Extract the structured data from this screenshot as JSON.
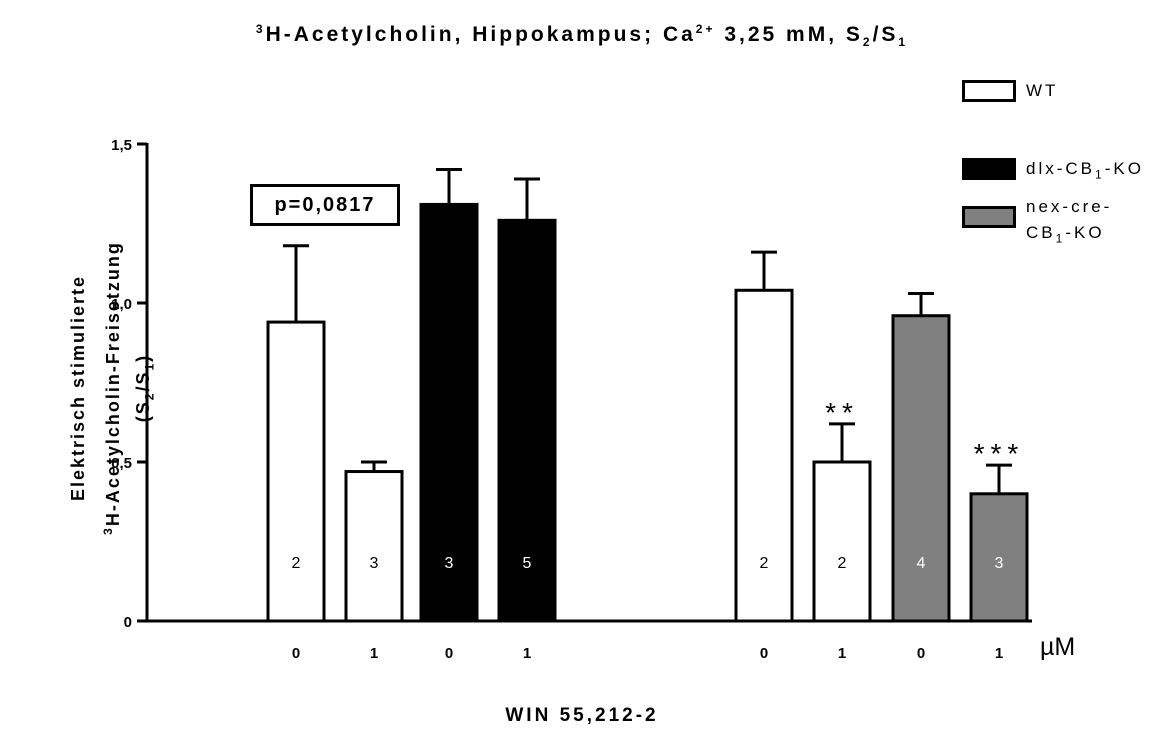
{
  "chart_data": {
    "type": "bar",
    "title_parts": {
      "pre_sup": "3",
      "main": "H-Acetylcholin, Hippokampus; Ca",
      "sup": "2+",
      "mid": " 3,25 mM, S",
      "sub1": "2",
      "slash": "/S",
      "sub2": "1"
    },
    "ylabel_parts": {
      "line1": "Elektrisch stimulierte",
      "line2_sup": "3",
      "line2": "H-Acetylcholin-Freisetzung",
      "line3_pre": "(S",
      "line3_sub1": "2",
      "line3_mid": "/S",
      "line3_sub2": "1",
      "line3_post": ")"
    },
    "xlabel": "WIN 55,212-2",
    "x_unit": "µM",
    "ylim": [
      0,
      1.5
    ],
    "yticks": [
      {
        "value": 0,
        "label": "0"
      },
      {
        "value": 0.5,
        "label": "0,5"
      },
      {
        "value": 1.0,
        "label": "1,0"
      },
      {
        "value": 1.5,
        "label": "1,5"
      }
    ],
    "grid": false,
    "legend_placement": "top-right",
    "series": [
      {
        "name": "WT",
        "color": "#ffffff"
      },
      {
        "name": "dlx-CB₁-KO",
        "color": "#000000"
      },
      {
        "name": "nex-cre-CB₁-KO",
        "color": "#808080"
      }
    ],
    "legend_labels": [
      {
        "main": "WT",
        "sub": "",
        "post": "",
        "line2": "",
        "line2_sub": "",
        "line2_post": ""
      },
      {
        "main": "dlx-CB",
        "sub": "1",
        "post": "-KO",
        "line2": "",
        "line2_sub": "",
        "line2_post": ""
      },
      {
        "main": "nex-cre-",
        "sub": "",
        "post": "",
        "line2": "CB",
        "line2_sub": "1",
        "line2_post": "-KO"
      }
    ],
    "bars": [
      {
        "group": 1,
        "series": "WT",
        "dose": "0",
        "value": 0.94,
        "error": 0.24,
        "n": "2",
        "stars": ""
      },
      {
        "group": 1,
        "series": "WT",
        "dose": "1",
        "value": 0.47,
        "error": 0.03,
        "n": "3",
        "stars": ""
      },
      {
        "group": 1,
        "series": "dlx-CB₁-KO",
        "dose": "0",
        "value": 1.31,
        "error": 0.11,
        "n": "3",
        "stars": ""
      },
      {
        "group": 1,
        "series": "dlx-CB₁-KO",
        "dose": "1",
        "value": 1.26,
        "error": 0.13,
        "n": "5",
        "stars": ""
      },
      {
        "group": 2,
        "series": "WT",
        "dose": "0",
        "value": 1.04,
        "error": 0.12,
        "n": "2",
        "stars": ""
      },
      {
        "group": 2,
        "series": "WT",
        "dose": "1",
        "value": 0.5,
        "error": 0.12,
        "n": "2",
        "stars": "**"
      },
      {
        "group": 2,
        "series": "nex-cre-CB₁-KO",
        "dose": "0",
        "value": 0.96,
        "error": 0.07,
        "n": "4",
        "stars": ""
      },
      {
        "group": 2,
        "series": "nex-cre-CB₁-KO",
        "dose": "1",
        "value": 0.4,
        "error": 0.09,
        "n": "3",
        "stars": "***"
      }
    ],
    "annotation": "p=0,0817"
  }
}
